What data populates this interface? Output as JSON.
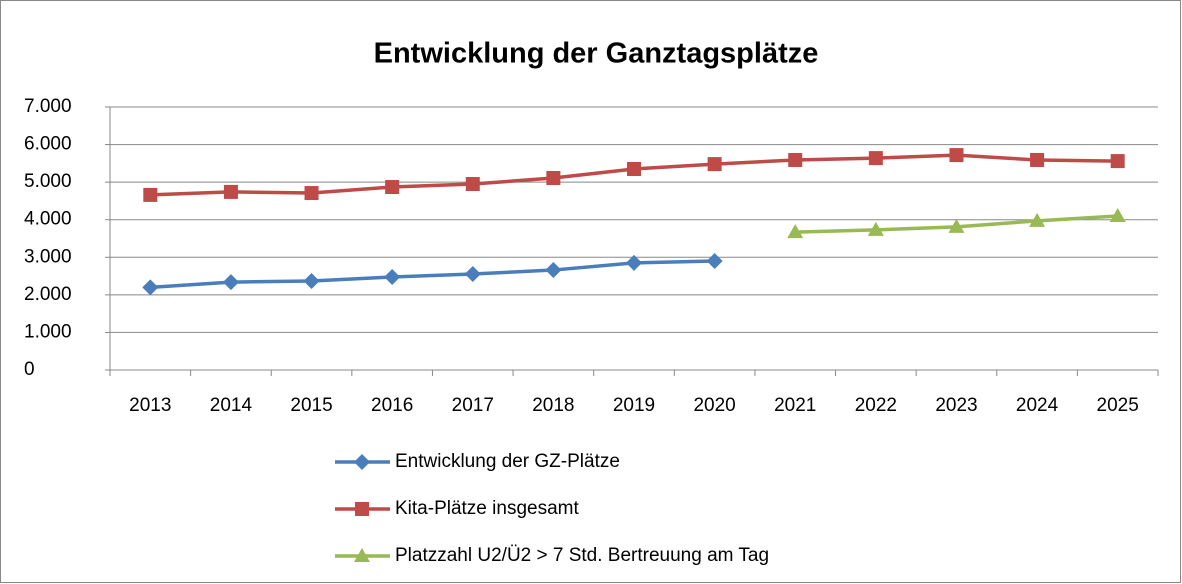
{
  "chart_data": {
    "type": "line",
    "title": "Entwicklung der Ganztagsplätze",
    "categories": [
      "2013",
      "2014",
      "2015",
      "2016",
      "2017",
      "2018",
      "2019",
      "2020",
      "2021",
      "2022",
      "2023",
      "2024",
      "2025"
    ],
    "series": [
      {
        "name": "Entwicklung der GZ-Plätze",
        "color": "#4a7ebb",
        "marker": "diamond",
        "values": [
          2200,
          2340,
          2370,
          2475,
          2555,
          2660,
          2850,
          2900,
          null,
          null,
          null,
          null,
          null
        ]
      },
      {
        "name": "Kita-Plätze insgesamt",
        "color": "#be4b48",
        "marker": "square",
        "values": [
          4660,
          4740,
          4710,
          4870,
          4950,
          5110,
          5350,
          5480,
          5590,
          5640,
          5720,
          5590,
          5560
        ]
      },
      {
        "name": "Platzzahl U2/Ü2 > 7 Std. Bertreuung am Tag",
        "color": "#98b954",
        "marker": "triangle",
        "values": [
          null,
          null,
          null,
          null,
          null,
          null,
          null,
          null,
          3670,
          3730,
          3810,
          3970,
          4100
        ]
      }
    ],
    "ylim": [
      0,
      7000
    ],
    "yticks": [
      0,
      {
        "value": 1000,
        "label": "1.000"
      },
      {
        "value": 2000,
        "label": "2.000"
      },
      {
        "value": 3000,
        "label": "3.000"
      },
      {
        "value": 4000,
        "label": "4.000"
      },
      {
        "value": 5000,
        "label": "5.000"
      },
      {
        "value": 6000,
        "label": "6.000"
      },
      {
        "value": 7000,
        "label": "7.000"
      }
    ],
    "grid": true,
    "legend": "bottom"
  }
}
